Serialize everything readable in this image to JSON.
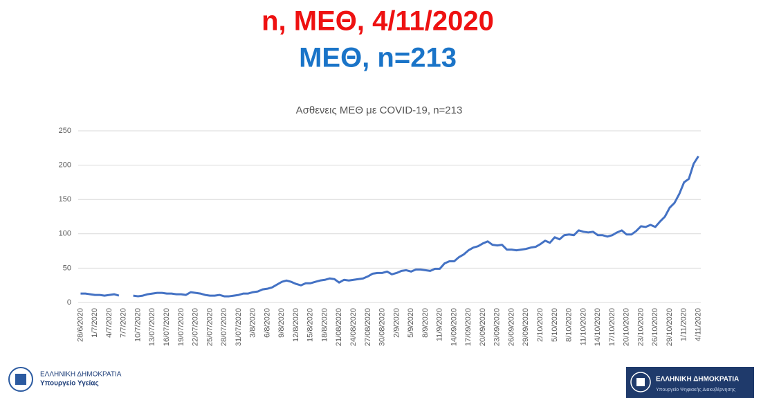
{
  "header": {
    "title": "n, ΜΕΘ, 4/11/2020",
    "subtitle": "ΜΕΘ, n=213"
  },
  "chart_data": {
    "type": "line",
    "title": "Ασθενεις ΜΕΘ με COVID-19, n=213",
    "color": "#4472c4",
    "categories": [
      "28/6/2020",
      null,
      null,
      "1/7/2020",
      null,
      null,
      "4/7/2020",
      null,
      null,
      "7/7/2020",
      null,
      null,
      "10/7/2020",
      null,
      null,
      "13/07/2020",
      null,
      null,
      "16/07/2020",
      null,
      null,
      "19/07/2020",
      null,
      null,
      "22/07/2020",
      null,
      null,
      "25/07/2020",
      null,
      null,
      "28/07/2020",
      null,
      null,
      "31/07/2020",
      null,
      null,
      "3/8/2020",
      null,
      null,
      "6/8/2020",
      null,
      null,
      "9/8/2020",
      null,
      null,
      "12/8/2020",
      null,
      null,
      "15/8/2020",
      null,
      null,
      "18/8/2020",
      null,
      null,
      "21/08/2020",
      null,
      null,
      "24/08/2020",
      null,
      null,
      "27/08/2020",
      null,
      null,
      "30/08/2020",
      null,
      null,
      "2/9/2020",
      null,
      null,
      "5/9/2020",
      null,
      null,
      "8/9/2020",
      null,
      null,
      "11/9/2020",
      null,
      null,
      "14/09/2020",
      null,
      null,
      "17/09/2020",
      null,
      null,
      "20/09/2020",
      null,
      null,
      "23/09/2020",
      null,
      null,
      "26/09/2020",
      null,
      null,
      "29/09/2020",
      null,
      null,
      "2/10/2020",
      null,
      null,
      "5/10/2020",
      null,
      null,
      "8/10/2020",
      null,
      null,
      "11/10/2020",
      null,
      null,
      "14/10/2020",
      null,
      null,
      "17/10/2020",
      null,
      null,
      "20/10/2020",
      null,
      null,
      "23/10/2020",
      null,
      null,
      "26/10/2020",
      null,
      null,
      "29/10/2020",
      null,
      null,
      "1/11/2020",
      null,
      null,
      "4/11/2020"
    ],
    "values": [
      13,
      13,
      12,
      11,
      11,
      10,
      11,
      12,
      10,
      null,
      null,
      10,
      9,
      10,
      12,
      13,
      14,
      14,
      13,
      13,
      12,
      12,
      11,
      15,
      14,
      13,
      11,
      10,
      10,
      11,
      9,
      9,
      10,
      11,
      13,
      13,
      15,
      16,
      19,
      20,
      22,
      26,
      30,
      32,
      30,
      27,
      25,
      28,
      28,
      30,
      32,
      33,
      35,
      34,
      29,
      33,
      32,
      33,
      34,
      35,
      38,
      42,
      43,
      43,
      45,
      41,
      43,
      46,
      47,
      45,
      48,
      48,
      47,
      46,
      49,
      49,
      57,
      60,
      60,
      66,
      70,
      76,
      80,
      82,
      86,
      89,
      84,
      83,
      84,
      77,
      77,
      76,
      77,
      78,
      80,
      81,
      85,
      90,
      87,
      95,
      92,
      98,
      99,
      98,
      105,
      103,
      102,
      103,
      98,
      98,
      96,
      98,
      102,
      105,
      99,
      99,
      104,
      111,
      110,
      113,
      110,
      118,
      125,
      138,
      145,
      158,
      175,
      180,
      202,
      213
    ],
    "ylim": [
      0,
      250
    ],
    "yticks": [
      0,
      50,
      100,
      150,
      200,
      250
    ],
    "grid": true
  },
  "footer": {
    "left_line1": "ΕΛΛΗΝΙΚΗ ΔΗΜΟΚΡΑΤΙΑ",
    "left_line2": "Υπουργείο Υγείας",
    "right_line1": "ΕΛΛΗΝΙΚΗ ΔΗΜΟΚΡΑΤΙΑ",
    "right_line2": "Υπουργείο Ψηφιακής Διακυβέρνησης"
  }
}
